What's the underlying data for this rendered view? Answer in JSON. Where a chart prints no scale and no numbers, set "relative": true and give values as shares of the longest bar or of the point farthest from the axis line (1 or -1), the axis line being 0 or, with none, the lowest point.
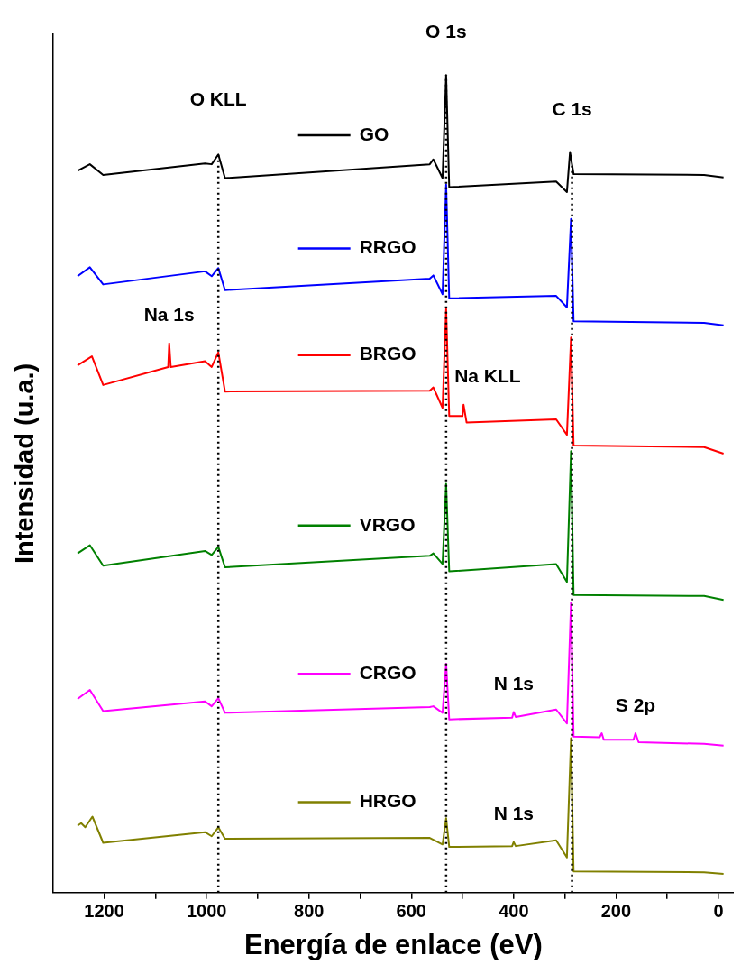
{
  "chart_data": {
    "type": "line",
    "relative": true,
    "xlabel": "Energía de enlace (eV)",
    "ylabel": "Intensidad (u.a.)",
    "xlim": [
      1300,
      -30
    ],
    "xticks": [
      1200,
      {
        "value": 1100,
        "label": null
      },
      1000,
      {
        "value": 900,
        "label": null
      },
      800,
      {
        "value": 700,
        "label": null
      },
      600,
      {
        "value": 500,
        "label": null
      },
      400,
      {
        "value": 300,
        "label": null
      },
      200,
      {
        "value": 100,
        "label": null
      },
      0
    ],
    "grid": false,
    "line_style": "solid",
    "marker": "none",
    "legend": "left",
    "series": [
      {
        "name": "GO",
        "color": "#000000",
        "x": [
          1252,
          1228,
          1202,
          1003,
          990,
          977,
          964,
          564,
          557,
          539,
          532,
          526,
          317,
          296,
          290,
          283,
          28,
          -10
        ],
        "values": [
          0.883,
          0.891,
          0.878,
          0.892,
          0.891,
          0.903,
          0.874,
          0.891,
          0.897,
          0.874,
          1.0,
          0.863,
          0.87,
          0.857,
          0.906,
          0.879,
          0.878,
          0.875
        ]
      },
      {
        "name": "RRGO",
        "color": "#0000ff",
        "x": [
          1252,
          1228,
          1202,
          1003,
          990,
          977,
          964,
          564,
          557,
          539,
          532,
          526,
          317,
          296,
          288,
          283,
          28,
          -10
        ],
        "values": [
          0.754,
          0.765,
          0.744,
          0.76,
          0.754,
          0.764,
          0.737,
          0.751,
          0.755,
          0.732,
          0.866,
          0.727,
          0.73,
          0.716,
          0.824,
          0.699,
          0.697,
          0.694
        ]
      },
      {
        "name": "BRGO",
        "color": "#ff0000",
        "x": [
          1252,
          1224,
          1202,
          1075,
          1073,
          1070,
          1003,
          990,
          977,
          964,
          564,
          557,
          539,
          532,
          526,
          500,
          498,
          492,
          317,
          296,
          288,
          283,
          28,
          -10
        ],
        "values": [
          0.645,
          0.656,
          0.621,
          0.643,
          0.672,
          0.643,
          0.65,
          0.643,
          0.661,
          0.613,
          0.614,
          0.618,
          0.593,
          0.714,
          0.583,
          0.583,
          0.597,
          0.575,
          0.579,
          0.56,
          0.679,
          0.547,
          0.545,
          0.537
        ]
      },
      {
        "name": "VRGO",
        "color": "#008000",
        "x": [
          1252,
          1228,
          1202,
          1003,
          990,
          977,
          964,
          564,
          557,
          539,
          532,
          526,
          317,
          296,
          288,
          283,
          28,
          -10
        ],
        "values": [
          0.415,
          0.425,
          0.4,
          0.418,
          0.413,
          0.423,
          0.398,
          0.412,
          0.415,
          0.402,
          0.5,
          0.393,
          0.402,
          0.38,
          0.54,
          0.364,
          0.363,
          0.358
        ]
      },
      {
        "name": "CRGO",
        "color": "#ff00ff",
        "x": [
          1252,
          1228,
          1202,
          1003,
          990,
          977,
          964,
          564,
          557,
          539,
          532,
          526,
          403,
          400,
          396,
          317,
          296,
          288,
          283,
          232,
          228,
          224,
          166,
          162,
          156,
          28,
          -10
        ],
        "values": [
          0.237,
          0.248,
          0.222,
          0.234,
          0.228,
          0.238,
          0.22,
          0.227,
          0.228,
          0.22,
          0.28,
          0.212,
          0.214,
          0.221,
          0.215,
          0.224,
          0.207,
          0.355,
          0.191,
          0.19,
          0.195,
          0.187,
          0.187,
          0.195,
          0.184,
          0.182,
          0.18
        ]
      },
      {
        "name": "HRGO",
        "color": "#808000",
        "x": [
          1252,
          1245,
          1237,
          1223,
          1202,
          1003,
          990,
          977,
          964,
          564,
          539,
          532,
          526,
          403,
          400,
          396,
          317,
          296,
          288,
          283,
          28,
          -10
        ],
        "values": [
          0.082,
          0.085,
          0.08,
          0.093,
          0.061,
          0.074,
          0.069,
          0.08,
          0.066,
          0.067,
          0.059,
          0.091,
          0.056,
          0.057,
          0.062,
          0.057,
          0.064,
          0.043,
          0.189,
          0.026,
          0.025,
          0.023
        ]
      }
    ],
    "ref_lines": [
      {
        "axis": "x",
        "value": 977,
        "label": "O KLL",
        "line_style": "dotted",
        "color": "#000000"
      },
      {
        "axis": "x",
        "value": 532,
        "label": "O 1s",
        "line_style": "dotted",
        "color": "#000000"
      },
      {
        "axis": "x",
        "value": 286,
        "label": "C 1s",
        "line_style": "dotted",
        "color": "#000000"
      }
    ],
    "annotations": [
      {
        "text": "Na 1s",
        "x": 1073,
        "y": 0.672
      },
      {
        "text": "Na KLL",
        "x": 498,
        "y": 0.597
      },
      {
        "text": "N 1s",
        "x": 400,
        "y": 0.221
      },
      {
        "text": "S 2p",
        "x": 162,
        "y": 0.195
      },
      {
        "text": "N 1s",
        "x": 400,
        "y": 0.062
      }
    ]
  }
}
